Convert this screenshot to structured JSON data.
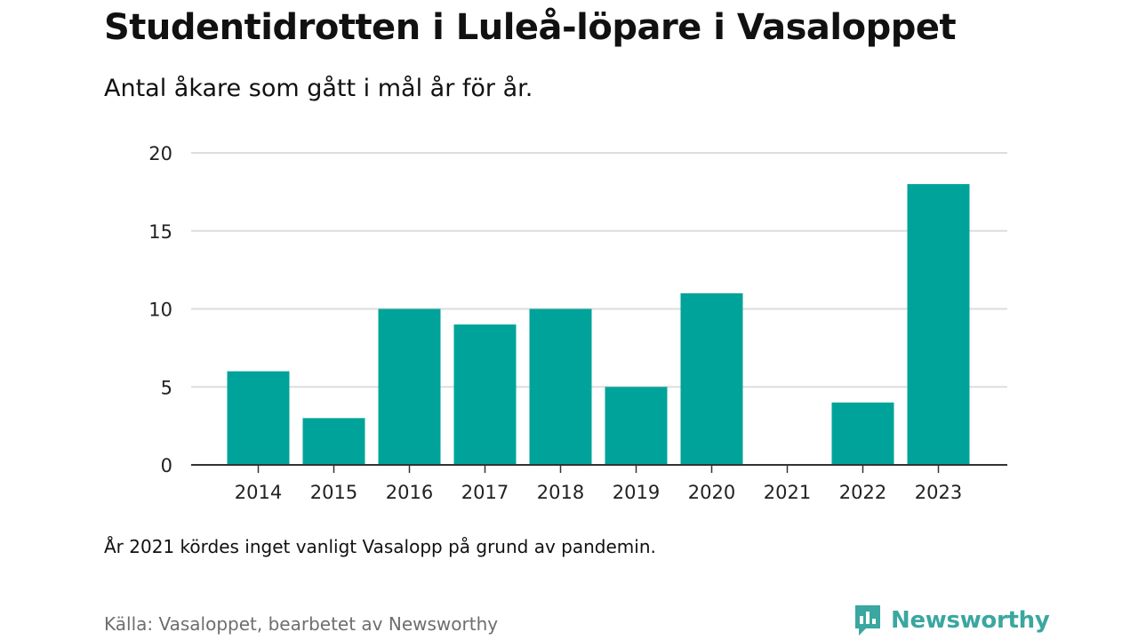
{
  "header": {
    "title": "Studentidrotten i Luleå-löpare i Vasaloppet",
    "subtitle": "Antal åkare som gått i mål år för år."
  },
  "footer": {
    "note": "År 2021 kördes inget vanligt Vasalopp på grund av pandemin.",
    "source": "Källa: Vasaloppet, bearbetet av Newsworthy",
    "brand": "Newsworthy",
    "brand_icon": "newsworthy-logo-icon",
    "brand_color": "#3aa7a0"
  },
  "colors": {
    "bar": "#00a39a",
    "grid": "#dddddd",
    "axis": "#333333",
    "text": "#111111"
  },
  "chart_data": {
    "type": "bar",
    "categories": [
      "2014",
      "2015",
      "2016",
      "2017",
      "2018",
      "2019",
      "2020",
      "2021",
      "2022",
      "2023"
    ],
    "values": [
      6,
      3,
      10,
      9,
      10,
      5,
      11,
      0,
      4,
      18
    ],
    "yticks": [
      0,
      5,
      10,
      15,
      20
    ],
    "ylim": [
      0,
      20
    ],
    "grid": true,
    "legend": "none"
  }
}
